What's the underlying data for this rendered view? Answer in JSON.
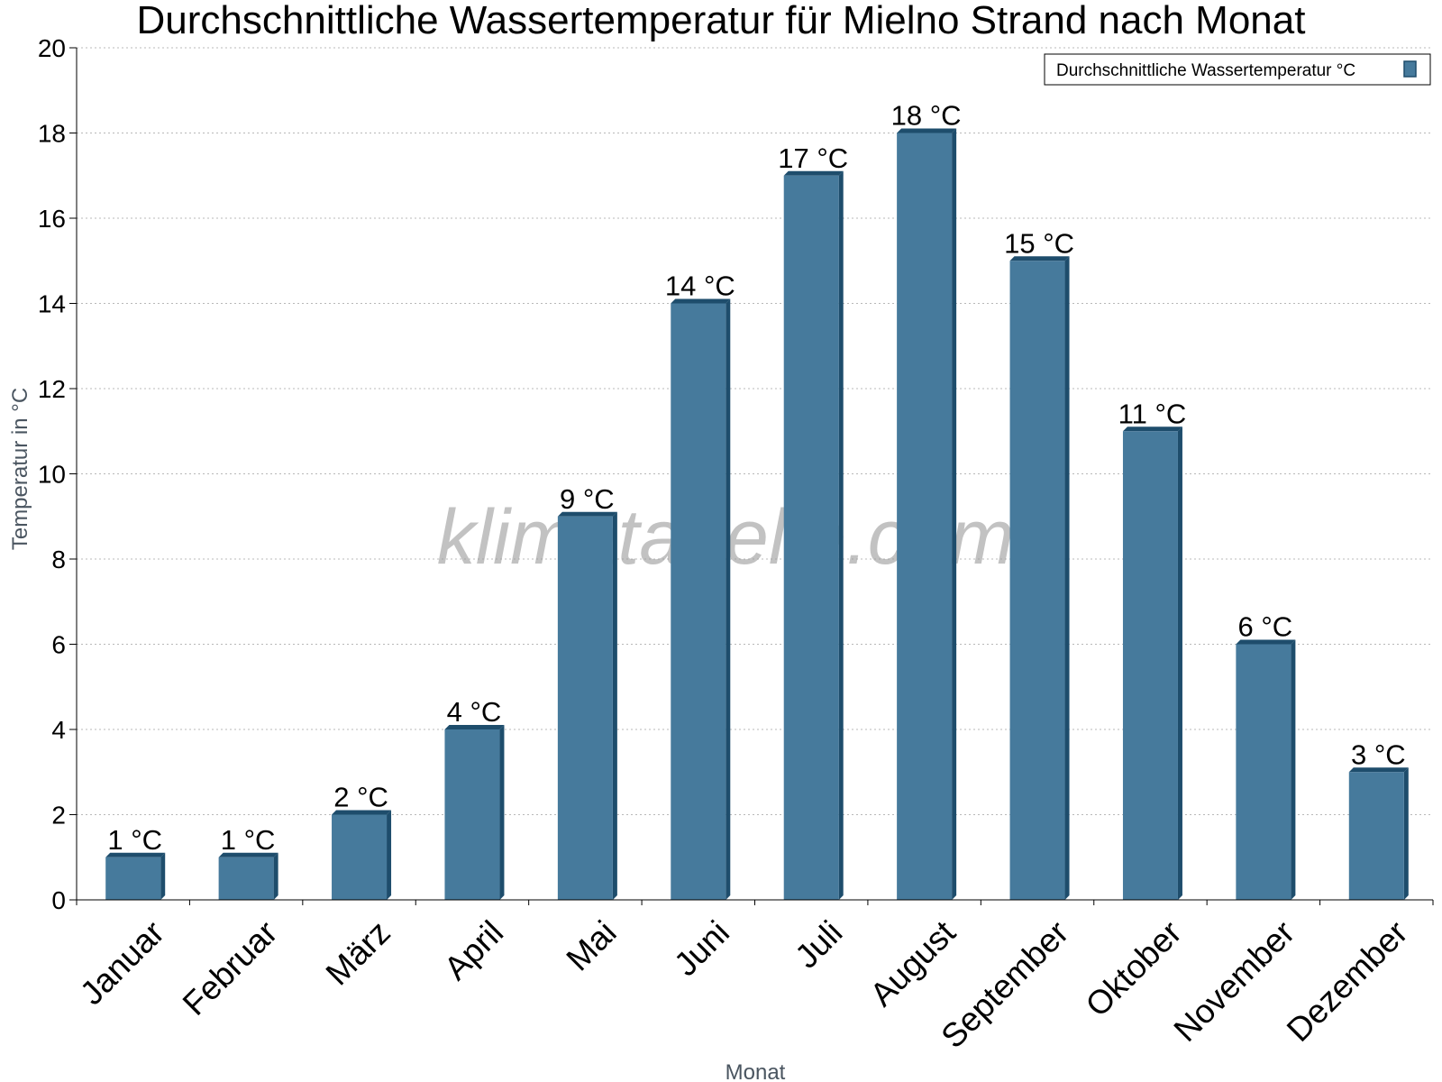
{
  "chart_data": {
    "type": "bar",
    "title": "Durchschnittliche Wassertemperatur für Mielno Strand nach Monat",
    "xlabel": "Monat",
    "ylabel": "Temperatur in °C",
    "ylim": [
      0,
      20
    ],
    "yticks": [
      0,
      2,
      4,
      6,
      8,
      10,
      12,
      14,
      16,
      18,
      20
    ],
    "grid": true,
    "legend_position": "top-right",
    "categories": [
      "Januar",
      "Februar",
      "März",
      "April",
      "Mai",
      "Juni",
      "Juli",
      "August",
      "September",
      "Oktober",
      "November",
      "Dezember"
    ],
    "series": [
      {
        "name": "Durchschnittliche Wassertemperatur °C",
        "values": [
          1,
          1,
          2,
          4,
          9,
          14,
          17,
          18,
          15,
          11,
          6,
          3
        ],
        "data_labels": [
          "1 °C",
          "1 °C",
          "2 °C",
          "4 °C",
          "9 °C",
          "14 °C",
          "17 °C",
          "18 °C",
          "15 °C",
          "11 °C",
          "6 °C",
          "3 °C"
        ],
        "color": "#467a9c",
        "side_color": "#1e4d6c"
      }
    ],
    "watermark": "klimatabelle.com"
  }
}
